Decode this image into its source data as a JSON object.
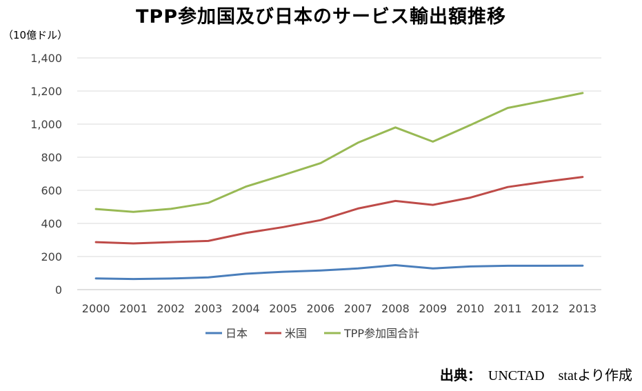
{
  "title": "TPP参加国及び日本のサービス輸出額推移",
  "unit_label": "（10億ドル）",
  "source": {
    "prefix": "出典：",
    "text": "UNCTAD　statより作成"
  },
  "colors": {
    "japan": "#4A7EBB",
    "usa": "#BE4B48",
    "tpp": "#98B954",
    "grid": "#D9D9D9",
    "axis": "#BFBFBF"
  },
  "chart_data": {
    "type": "line",
    "categories": [
      "2000",
      "2001",
      "2002",
      "2003",
      "2004",
      "2005",
      "2006",
      "2007",
      "2008",
      "2009",
      "2010",
      "2011",
      "2012",
      "2013"
    ],
    "ylim": [
      0,
      1400
    ],
    "yticks": [
      0,
      200,
      400,
      600,
      800,
      1000,
      1200,
      1400
    ],
    "ytick_labels": [
      "0",
      "200",
      "400",
      "600",
      "800",
      "1,000",
      "1,200",
      "1,400"
    ],
    "grid": true,
    "legend_position": "bottom",
    "series": [
      {
        "name": "日本",
        "color": "#4A7EBB",
        "values": [
          68,
          64,
          67,
          74,
          96,
          108,
          116,
          128,
          148,
          128,
          140,
          144,
          144,
          145
        ]
      },
      {
        "name": "米国",
        "color": "#BE4B48",
        "values": [
          287,
          279,
          287,
          294,
          342,
          378,
          420,
          490,
          536,
          512,
          556,
          620,
          652,
          681
        ]
      },
      {
        "name": "TPP参加国合計",
        "color": "#98B954",
        "values": [
          487,
          470,
          488,
          524,
          622,
          692,
          764,
          888,
          980,
          894,
          994,
          1098,
          1142,
          1188
        ]
      }
    ]
  }
}
